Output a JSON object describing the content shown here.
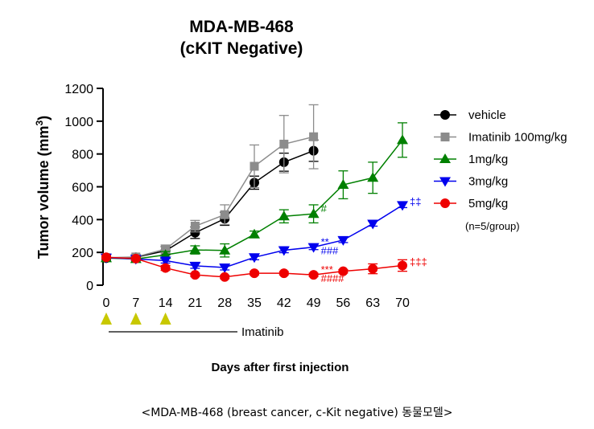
{
  "chart_data": {
    "type": "line",
    "title": "MDA-MB-468",
    "subtitle": "(cKIT Negative)",
    "xlabel": "Days after first injection",
    "ylabel": "Tumor volume (mm",
    "ylabel_superscript": "3",
    "ylabel_close": ")",
    "xlim": [
      0,
      70
    ],
    "ylim": [
      0,
      1200
    ],
    "xticks": [
      0,
      7,
      14,
      21,
      28,
      35,
      42,
      49,
      56,
      63,
      70
    ],
    "yticks": [
      0,
      200,
      400,
      600,
      800,
      1000,
      1200
    ],
    "grid": false,
    "legend_position": "right",
    "series": [
      {
        "name": "vehicle",
        "color": "#000000",
        "marker": "circle",
        "x": [
          0,
          7,
          14,
          21,
          28,
          35,
          42,
          49
        ],
        "y": [
          165,
          170,
          210,
          320,
          405,
          625,
          750,
          820
        ],
        "err": [
          15,
          15,
          25,
          35,
          40,
          40,
          55,
          65
        ]
      },
      {
        "name": "Imatinib 100mg/kg",
        "color": "#8c8c8c",
        "marker": "square",
        "x": [
          0,
          7,
          14,
          21,
          28,
          35,
          42,
          49
        ],
        "y": [
          168,
          172,
          220,
          360,
          430,
          725,
          860,
          905
        ],
        "err": [
          15,
          15,
          25,
          35,
          60,
          130,
          175,
          195
        ]
      },
      {
        "name": "1mg/kg",
        "color": "#008000",
        "marker": "triangle-up",
        "x": [
          0,
          7,
          14,
          21,
          28,
          35,
          42,
          49,
          56,
          63,
          70
        ],
        "y": [
          165,
          160,
          185,
          215,
          212,
          310,
          420,
          435,
          612,
          655,
          885
        ],
        "err": [
          10,
          10,
          20,
          25,
          40,
          20,
          40,
          55,
          85,
          95,
          105
        ]
      },
      {
        "name": "3mg/kg",
        "color": "#0000ee",
        "marker": "triangle-down",
        "x": [
          0,
          7,
          14,
          21,
          28,
          35,
          42,
          49,
          56,
          63,
          70
        ],
        "y": [
          168,
          160,
          150,
          118,
          108,
          170,
          213,
          232,
          275,
          375,
          488
        ],
        "err": [
          10,
          10,
          15,
          15,
          15,
          15,
          15,
          15,
          15,
          15,
          15
        ]
      },
      {
        "name": "5mg/kg",
        "color": "#ee0000",
        "marker": "circle",
        "x": [
          0,
          7,
          14,
          21,
          28,
          35,
          42,
          49,
          56,
          63,
          70
        ],
        "y": [
          170,
          162,
          105,
          63,
          50,
          73,
          73,
          63,
          85,
          100,
          120
        ],
        "err": [
          10,
          10,
          15,
          10,
          10,
          10,
          10,
          10,
          10,
          30,
          35
        ]
      }
    ],
    "annotations": [
      {
        "text": "#",
        "series": "1mg/kg",
        "x": 49,
        "color": "#008000"
      },
      {
        "text": "**",
        "series": "3mg/kg",
        "x": 49,
        "color": "#0000ee"
      },
      {
        "text": "###",
        "series": "3mg/kg",
        "x": 49,
        "color": "#0000ee"
      },
      {
        "text": "‡‡",
        "series": "3mg/kg",
        "x": 70,
        "color": "#0000ee"
      },
      {
        "text": "***",
        "series": "5mg/kg",
        "x": 49,
        "color": "#ee0000"
      },
      {
        "text": "####",
        "series": "5mg/kg",
        "x": 49,
        "color": "#ee0000"
      },
      {
        "text": "‡‡‡",
        "series": "5mg/kg",
        "x": 70,
        "color": "#ee0000"
      }
    ],
    "legend_note": "(n=5/group)",
    "dosing_days": [
      0,
      7,
      14
    ],
    "dosing_marker_color": "#c8c800",
    "treatment_label": "Imatinib"
  },
  "caption": "<MDA-MB-468 (breast cancer, c-Kit negative)  동물모델>"
}
